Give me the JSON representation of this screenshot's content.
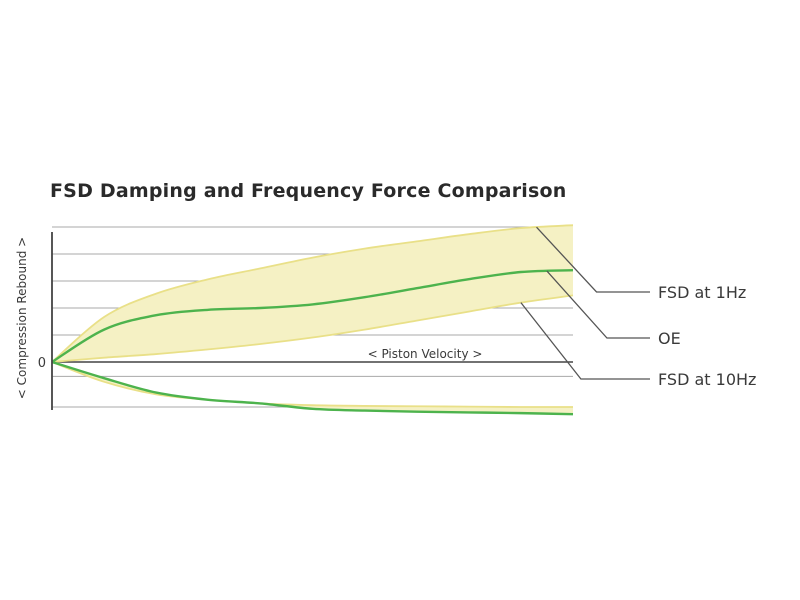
{
  "title": "FSD Damping and Frequency Force Comparison",
  "colors": {
    "band_fill": "#f5f1c4",
    "band_edge": "#e9e088",
    "oe_line": "#4db34d",
    "grid": "#a8a8a8",
    "axis": "#444444",
    "leader": "#555555"
  },
  "chart_data": {
    "type": "line",
    "title": "FSD Damping and Frequency Force Comparison",
    "xlabel": "< Piston Velocity >",
    "ylabel": "< Compression Rebound >",
    "y_zero_label": "0",
    "xlim": [
      0,
      1
    ],
    "ylim": [
      -1.4,
      3.85
    ],
    "grid": true,
    "gridlines_y": [
      3.75,
      3.0,
      2.25,
      1.5,
      0.75,
      0.0,
      -0.4,
      -1.25
    ],
    "x": [
      0,
      0.1,
      0.2,
      0.3,
      0.4,
      0.5,
      0.6,
      0.7,
      0.8,
      0.9,
      1.0
    ],
    "series": [
      {
        "name": "FSD at 1Hz",
        "rebound": [
          0,
          1.25,
          1.9,
          2.3,
          2.6,
          2.9,
          3.15,
          3.35,
          3.55,
          3.72,
          3.8
        ],
        "compression": [
          0,
          -0.55,
          -0.9,
          -1.05,
          -1.15,
          -1.2,
          -1.22,
          -1.23,
          -1.24,
          -1.25,
          -1.25
        ]
      },
      {
        "name": "OE",
        "rebound": [
          0,
          0.9,
          1.3,
          1.45,
          1.5,
          1.6,
          1.8,
          2.05,
          2.3,
          2.5,
          2.55
        ],
        "compression": [
          0,
          -0.45,
          -0.85,
          -1.05,
          -1.15,
          -1.3,
          -1.35,
          -1.38,
          -1.4,
          -1.42,
          -1.45
        ]
      },
      {
        "name": "FSD at 10Hz",
        "rebound": [
          0,
          0.12,
          0.22,
          0.35,
          0.5,
          0.68,
          0.9,
          1.15,
          1.4,
          1.65,
          1.85
        ],
        "compression": [
          0,
          -0.45,
          -0.85,
          -1.05,
          -1.15,
          -1.3,
          -1.35,
          -1.38,
          -1.4,
          -1.42,
          -1.45
        ]
      }
    ],
    "legend": "right",
    "leaders": [
      {
        "label": "FSD at 1Hz",
        "anchor_x": 0.93,
        "series": "FSD at 1Hz"
      },
      {
        "label": "OE",
        "anchor_x": 0.95,
        "series": "OE"
      },
      {
        "label": "FSD at 10Hz",
        "anchor_x": 0.9,
        "series": "FSD at 10Hz"
      }
    ]
  }
}
